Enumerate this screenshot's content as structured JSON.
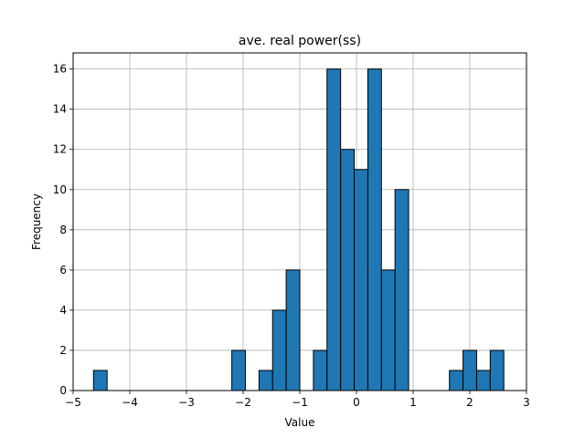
{
  "chart_data": {
    "type": "bar",
    "title": "ave. real power(ss)",
    "xlabel": "Value",
    "ylabel": "Frequency",
    "xlim": [
      -5,
      3
    ],
    "ylim": [
      0,
      16.8
    ],
    "xticks": [
      -5,
      -4,
      -3,
      -2,
      -1,
      0,
      1,
      2,
      3
    ],
    "yticks": [
      0,
      2,
      4,
      6,
      8,
      10,
      12,
      14,
      16
    ],
    "grid": true,
    "bar_color": "#1f77b4",
    "edge_color": "#000000",
    "bins": [
      {
        "x0": -4.64,
        "x1": -4.4,
        "count": 1
      },
      {
        "x0": -2.2,
        "x1": -1.96,
        "count": 2
      },
      {
        "x0": -1.72,
        "x1": -1.48,
        "count": 1
      },
      {
        "x0": -1.48,
        "x1": -1.24,
        "count": 4
      },
      {
        "x0": -1.24,
        "x1": -1.0,
        "count": 6
      },
      {
        "x0": -0.76,
        "x1": -0.52,
        "count": 2
      },
      {
        "x0": -0.52,
        "x1": -0.28,
        "count": 16
      },
      {
        "x0": -0.28,
        "x1": -0.04,
        "count": 12
      },
      {
        "x0": -0.04,
        "x1": 0.2,
        "count": 11
      },
      {
        "x0": 0.2,
        "x1": 0.44,
        "count": 16
      },
      {
        "x0": 0.44,
        "x1": 0.68,
        "count": 6
      },
      {
        "x0": 0.68,
        "x1": 0.92,
        "count": 10
      },
      {
        "x0": 1.64,
        "x1": 1.88,
        "count": 1
      },
      {
        "x0": 1.88,
        "x1": 2.12,
        "count": 2
      },
      {
        "x0": 2.12,
        "x1": 2.36,
        "count": 1
      },
      {
        "x0": 2.36,
        "x1": 2.6,
        "count": 2
      }
    ]
  }
}
